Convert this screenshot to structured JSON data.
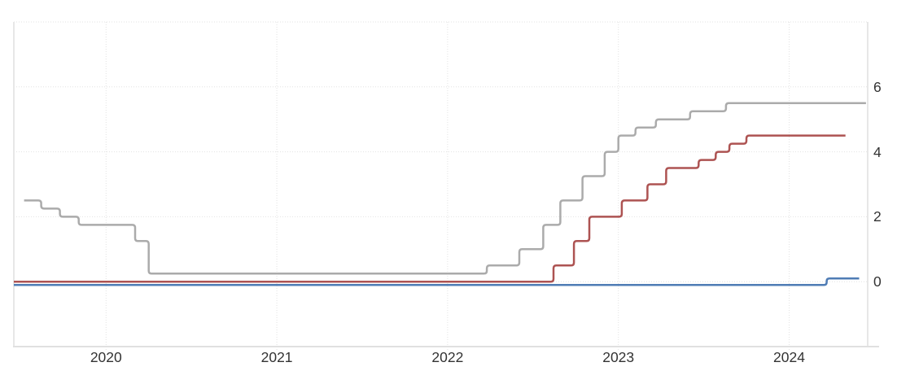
{
  "chart_data": {
    "type": "line",
    "subtype": "step-after",
    "title": "",
    "xlabel": "",
    "ylabel": "",
    "legend": "none",
    "grid": "dotted",
    "xlim": [
      2019.46,
      2024.46
    ],
    "ylim": [
      -2,
      8
    ],
    "x_ticks": [
      {
        "label": "2020",
        "value": 2020
      },
      {
        "label": "2021",
        "value": 2021
      },
      {
        "label": "2022",
        "value": 2022
      },
      {
        "label": "2023",
        "value": 2023
      },
      {
        "label": "2024",
        "value": 2024
      }
    ],
    "y_ticks": [
      {
        "label": "6",
        "value": 6
      },
      {
        "label": "4",
        "value": 4
      },
      {
        "label": "2",
        "value": 2
      },
      {
        "label": "0",
        "value": 0
      }
    ],
    "y_gridline_values": [
      8,
      6,
      4,
      2,
      0
    ],
    "series": [
      {
        "name": "gray-line",
        "color": "#ababab",
        "end_x": 2024.45,
        "points": [
          [
            2019.52,
            2.5
          ],
          [
            2019.62,
            2.25
          ],
          [
            2019.73,
            2.0
          ],
          [
            2019.84,
            1.75
          ],
          [
            2020.17,
            1.25
          ],
          [
            2020.25,
            0.25
          ],
          [
            2022.23,
            0.5
          ],
          [
            2022.42,
            1.0
          ],
          [
            2022.56,
            1.75
          ],
          [
            2022.66,
            2.5
          ],
          [
            2022.79,
            3.25
          ],
          [
            2022.92,
            4.0
          ],
          [
            2023.0,
            4.5
          ],
          [
            2023.1,
            4.75
          ],
          [
            2023.22,
            5.0
          ],
          [
            2023.42,
            5.25
          ],
          [
            2023.63,
            5.5
          ]
        ]
      },
      {
        "name": "red-line",
        "color": "#ad5352",
        "end_x": 2024.33,
        "points": [
          [
            2019.46,
            0.0
          ],
          [
            2022.62,
            0.5
          ],
          [
            2022.74,
            1.25
          ],
          [
            2022.83,
            2.0
          ],
          [
            2023.02,
            2.5
          ],
          [
            2023.17,
            3.0
          ],
          [
            2023.28,
            3.5
          ],
          [
            2023.47,
            3.75
          ],
          [
            2023.57,
            4.0
          ],
          [
            2023.65,
            4.25
          ],
          [
            2023.75,
            4.5
          ]
        ]
      },
      {
        "name": "blue-line",
        "color": "#4f7cb5",
        "end_x": 2024.41,
        "points": [
          [
            2019.46,
            -0.1
          ],
          [
            2024.22,
            0.1
          ]
        ]
      }
    ]
  },
  "style": {
    "background": "#ffffff",
    "grid_color": "#e2e2e2",
    "border_color": "#e7e7e7",
    "bottom_axis_color": "#e0e0e0",
    "tick_text_color": "#333333"
  }
}
